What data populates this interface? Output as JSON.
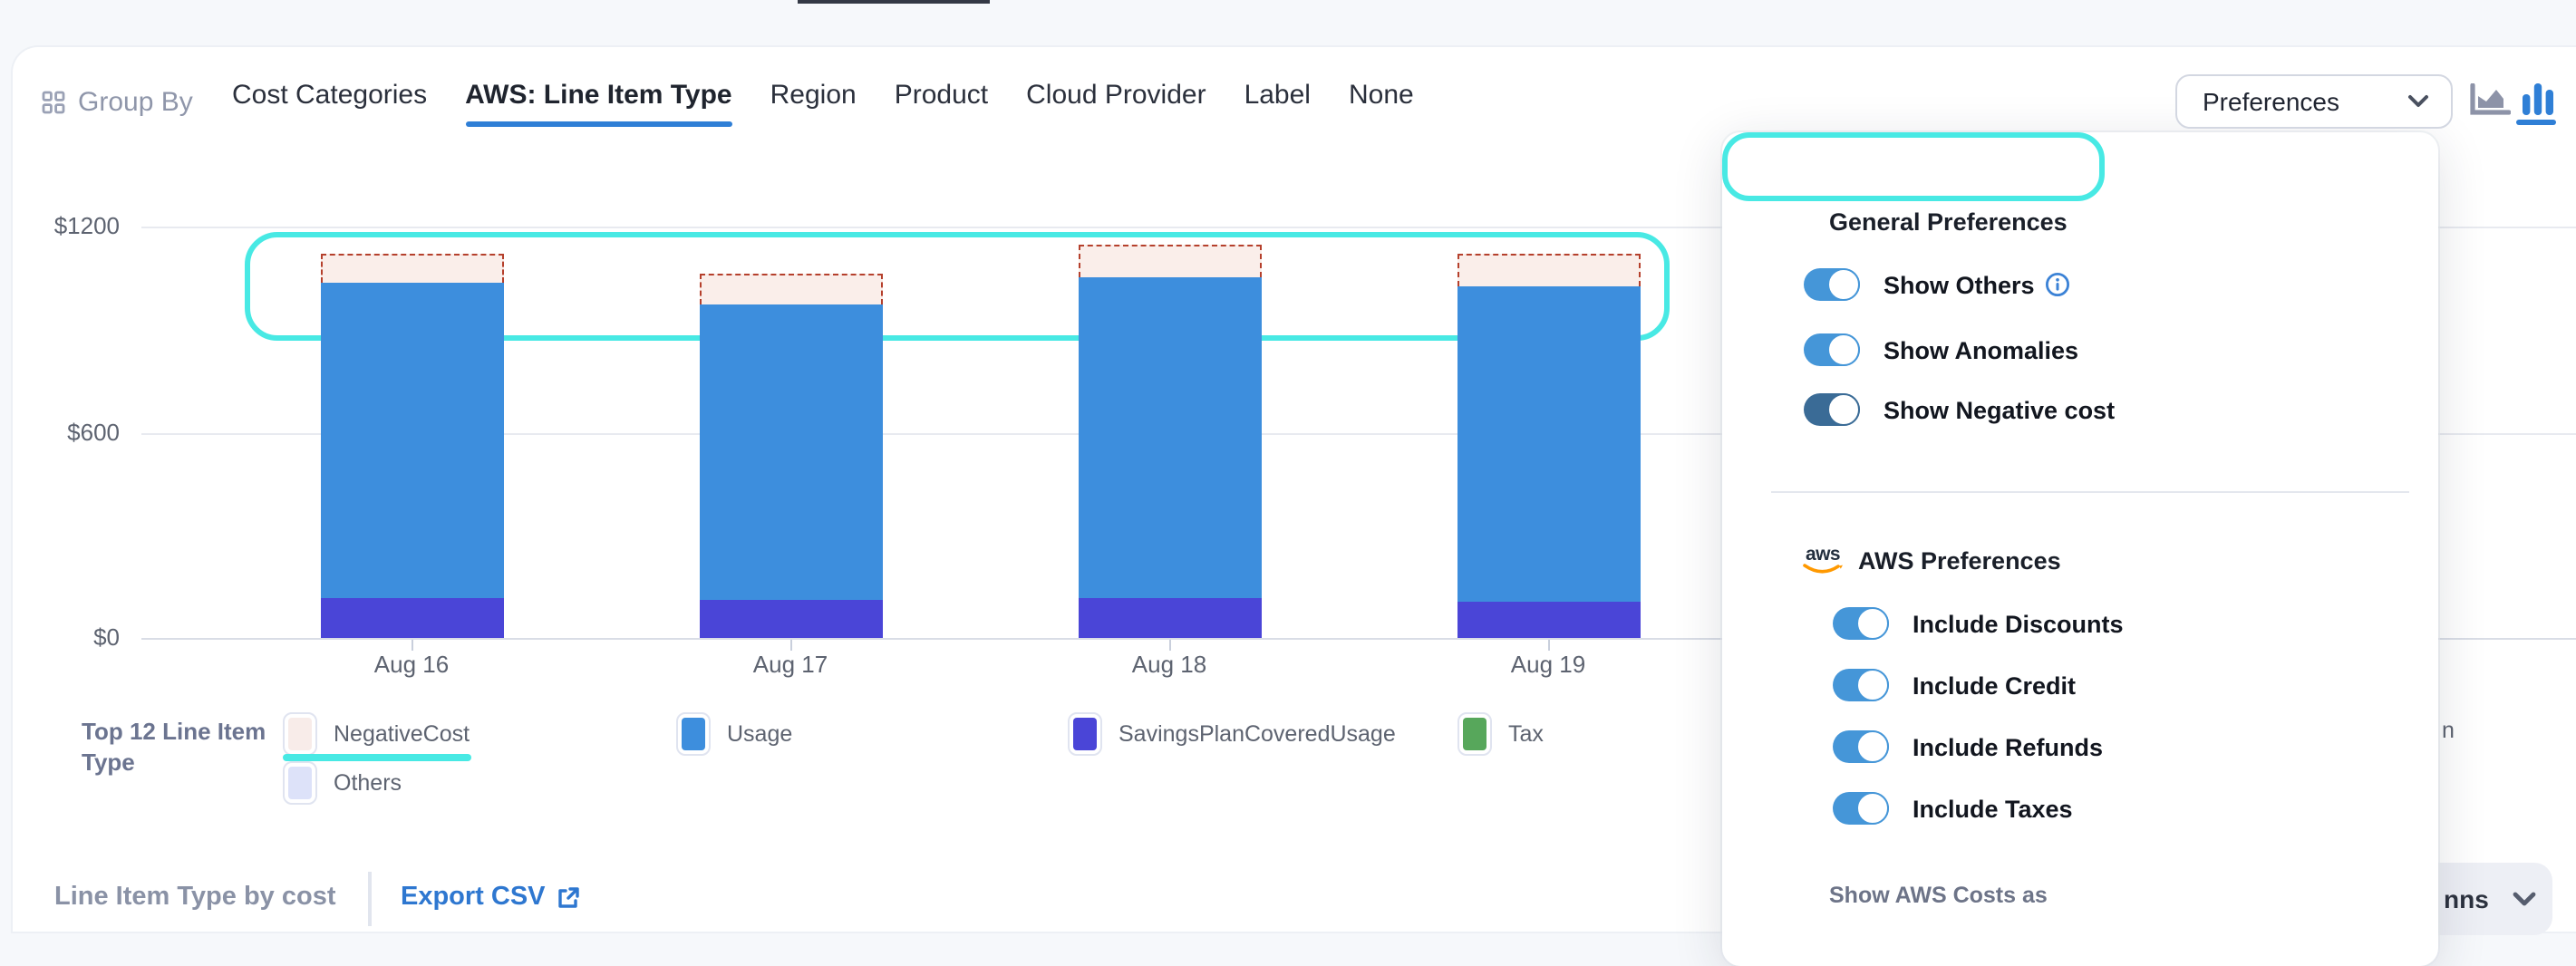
{
  "toolbar": {
    "group_by_label": "Group By",
    "tabs": [
      {
        "label": "Cost Categories",
        "active": false
      },
      {
        "label": "AWS: Line Item Type",
        "active": true
      },
      {
        "label": "Region",
        "active": false
      },
      {
        "label": "Product",
        "active": false
      },
      {
        "label": "Cloud Provider",
        "active": false
      },
      {
        "label": "Label",
        "active": false
      },
      {
        "label": "None",
        "active": false
      }
    ],
    "preferences_label": "Preferences",
    "chart_view_icons": [
      {
        "name": "area-chart-icon",
        "active": false
      },
      {
        "name": "bar-chart-icon",
        "active": true
      }
    ]
  },
  "chart_data": {
    "type": "bar",
    "stacked": true,
    "title": "",
    "categories": [
      "Aug 16",
      "Aug 17",
      "Aug 18",
      "Aug 19"
    ],
    "series": [
      {
        "name": "SavingsPlanCoveredUsage",
        "color": "#4a45d7",
        "values": [
          115,
          110,
          115,
          105
        ]
      },
      {
        "name": "Usage",
        "color": "#3d8edd",
        "values": [
          920,
          865,
          935,
          920
        ]
      },
      {
        "name": "Tax",
        "color": "#57a75b",
        "values": [
          0,
          0,
          0,
          0
        ]
      },
      {
        "name": "Others",
        "color": "#dde2f9",
        "values": [
          0,
          0,
          0,
          0
        ]
      },
      {
        "name": "NegativeCost",
        "color": "#faeeea",
        "dashed": true,
        "values": [
          85,
          85,
          95,
          95
        ]
      }
    ],
    "ylabel": "",
    "xlabel": "",
    "ylim": [
      0,
      1200
    ],
    "yticks": [
      {
        "value": 0,
        "label": "$0"
      },
      {
        "value": 600,
        "label": "$600"
      },
      {
        "value": 1200,
        "label": "$1200"
      }
    ],
    "grid": true,
    "annotation": "cyan highlight box around negative-cost segments of all bars"
  },
  "legend": {
    "title": "Top 12 Line Item Type",
    "items": [
      {
        "label": "NegativeCost",
        "color": "#f8ece9",
        "underlined": true
      },
      {
        "label": "Usage",
        "color": "#3d8edd",
        "underlined": false
      },
      {
        "label": "SavingsPlanCoveredUsage",
        "color": "#4a45d7",
        "underlined": false
      },
      {
        "label": "Tax",
        "color": "#57a75b",
        "underlined": false
      },
      {
        "label": "Others",
        "color": "#dde2f9",
        "underlined": false
      }
    ],
    "clipped_fragment": "n"
  },
  "panel": {
    "general_title": "General Preferences",
    "general_toggles": [
      {
        "label": "Show Others",
        "on": true,
        "info": true,
        "dark": false,
        "highlighted": false
      },
      {
        "label": "Show Anomalies",
        "on": true,
        "info": false,
        "dark": false,
        "highlighted": false
      },
      {
        "label": "Show Negative cost",
        "on": true,
        "info": false,
        "dark": true,
        "highlighted": true
      }
    ],
    "aws_title": "AWS Preferences",
    "aws_logo_text": "aws",
    "aws_toggles": [
      {
        "label": "Include Discounts",
        "on": true
      },
      {
        "label": "Include Credit",
        "on": true
      },
      {
        "label": "Include Refunds",
        "on": true
      },
      {
        "label": "Include Taxes",
        "on": true
      }
    ],
    "show_costs_label": "Show AWS Costs as"
  },
  "footer": {
    "title": "Line Item Type by cost",
    "export_label": "Export CSV",
    "columns_dropdown_partial": "nns"
  },
  "colors": {
    "accent_blue": "#2f7fd6",
    "toggle_blue": "#4596d8",
    "toggle_dark_blue": "#3a6b96",
    "cyan_highlight": "#48e9e4",
    "negative_dash": "#b5402c",
    "aws_orange": "#ff9900"
  }
}
